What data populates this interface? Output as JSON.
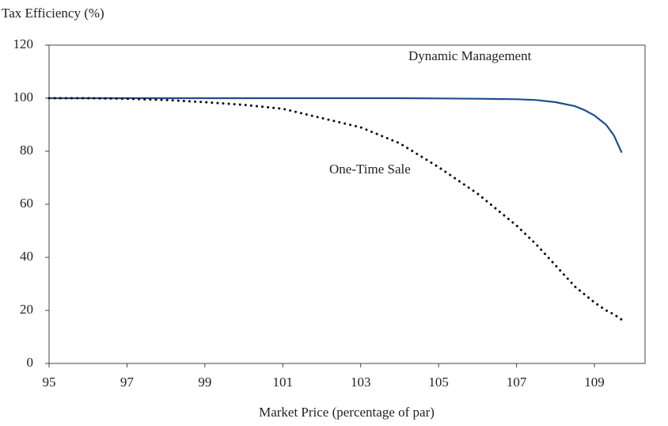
{
  "chart_data": {
    "type": "line",
    "y_axis_title": "Tax Efficiency (%)",
    "x_axis_title": "Market Price (percentage of par)",
    "x": [
      95,
      96,
      97,
      98,
      99,
      100,
      101,
      102,
      103,
      104,
      105,
      106,
      107,
      107.5,
      108,
      108.5,
      108.75,
      109,
      109.3,
      109.5,
      109.7
    ],
    "series": [
      {
        "name": "Dynamic Management",
        "color": "#1f4e8c",
        "style": "solid",
        "values": [
          100,
          100,
          100,
          100,
          100,
          100,
          100,
          100,
          100,
          100,
          99.9,
          99.8,
          99.6,
          99.3,
          98.5,
          97,
          95.5,
          93.5,
          90,
          86,
          79.5
        ]
      },
      {
        "name": "One-Time Sale",
        "color": "#111111",
        "style": "dotted",
        "values": [
          100,
          100,
          99.8,
          99.3,
          98.5,
          97.5,
          96,
          92.5,
          89,
          83,
          74,
          64,
          52,
          45,
          37,
          29,
          26,
          23,
          20,
          18.5,
          16.5
        ]
      }
    ],
    "xlim": [
      95,
      110.3
    ],
    "ylim": [
      0,
      120
    ],
    "xticks": [
      95,
      97,
      99,
      101,
      103,
      105,
      107,
      109
    ],
    "yticks": [
      0,
      20,
      40,
      60,
      80,
      100,
      120
    ]
  }
}
